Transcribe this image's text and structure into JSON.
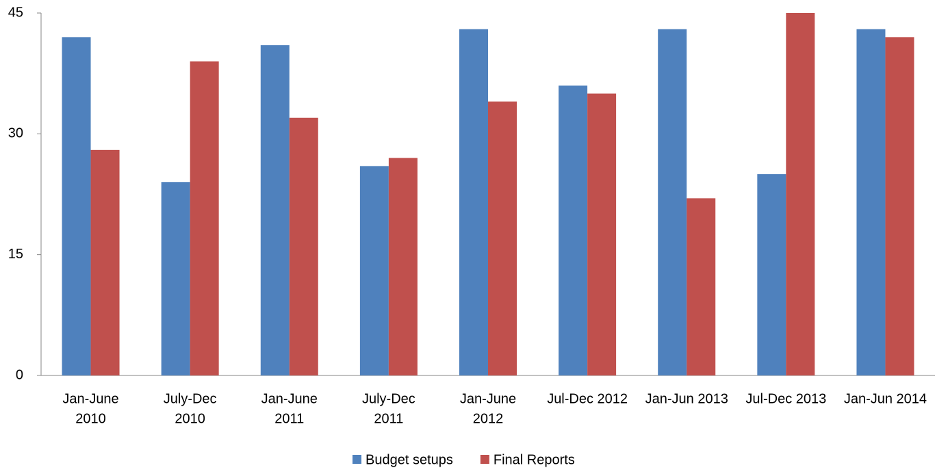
{
  "chart_data": {
    "type": "bar",
    "categories": [
      [
        "Jan-June",
        "2010"
      ],
      [
        "July-Dec",
        "2010"
      ],
      [
        "Jan-June",
        "2011"
      ],
      [
        "July-Dec",
        "2011"
      ],
      [
        "Jan-June",
        "2012"
      ],
      [
        "Jul-Dec 2012"
      ],
      [
        "Jan-Jun 2013"
      ],
      [
        "Jul-Dec 2013"
      ],
      [
        "Jan-Jun 2014"
      ]
    ],
    "series": [
      {
        "name": "Budget setups",
        "color": "#4f81bd",
        "values": [
          42,
          24,
          41,
          26,
          43,
          36,
          43,
          25,
          43
        ]
      },
      {
        "name": "Final Reports",
        "color": "#c0504d",
        "values": [
          28,
          39,
          32,
          27,
          34,
          35,
          22,
          45,
          42
        ]
      }
    ],
    "ylim": [
      0,
      45
    ],
    "yticks": [
      0,
      15,
      30,
      45
    ],
    "grid": false,
    "legend": "bottom"
  }
}
